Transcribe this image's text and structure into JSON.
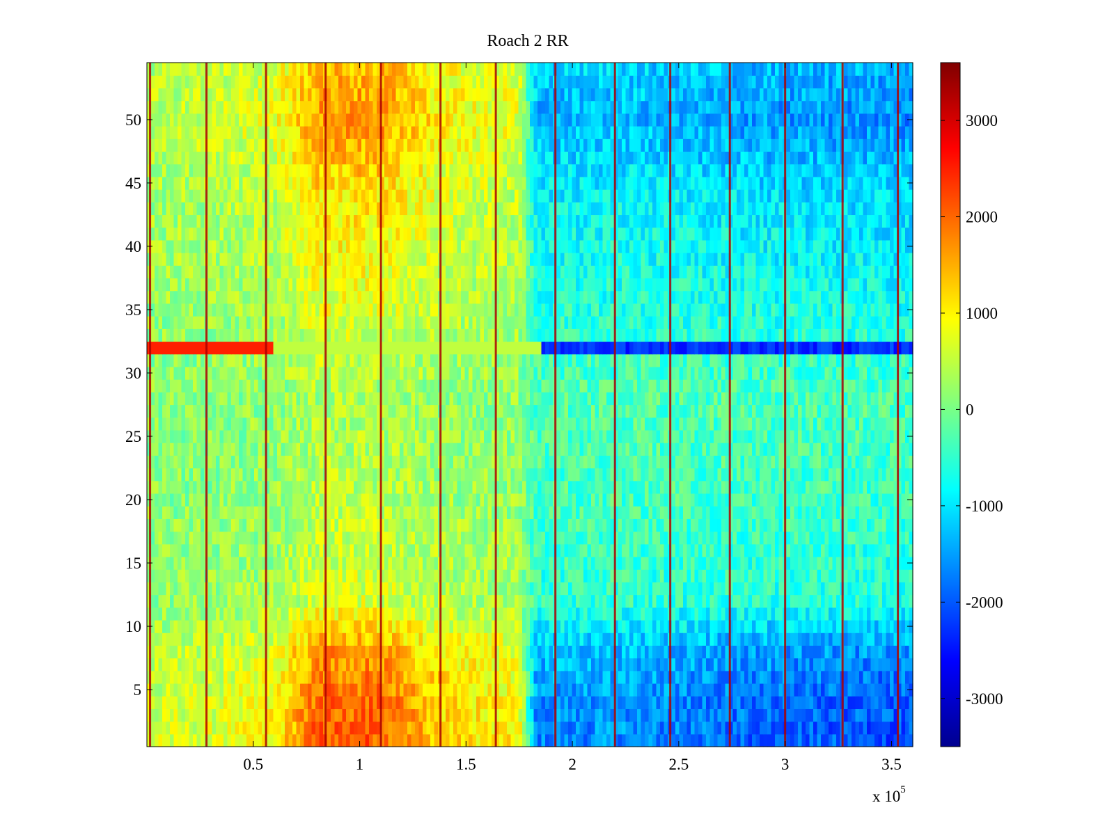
{
  "chart_data": {
    "type": "heatmap",
    "title": "Roach 2 RR",
    "xlabel": "",
    "ylabel": "",
    "x_multiplier_label": "x 10",
    "x_multiplier_exponent": "5",
    "xlim": [
      0,
      360000
    ],
    "ylim": [
      0.5,
      54.5
    ],
    "n_rows": 54,
    "x_ticks": [
      {
        "value": 50000,
        "label": "0.5"
      },
      {
        "value": 100000,
        "label": "1"
      },
      {
        "value": 150000,
        "label": "1.5"
      },
      {
        "value": 200000,
        "label": "2"
      },
      {
        "value": 250000,
        "label": "2.5"
      },
      {
        "value": 300000,
        "label": "3"
      },
      {
        "value": 350000,
        "label": "3.5"
      }
    ],
    "y_ticks": [
      {
        "value": 5,
        "label": "5"
      },
      {
        "value": 10,
        "label": "10"
      },
      {
        "value": 15,
        "label": "15"
      },
      {
        "value": 20,
        "label": "20"
      },
      {
        "value": 25,
        "label": "25"
      },
      {
        "value": 30,
        "label": "30"
      },
      {
        "value": 35,
        "label": "35"
      },
      {
        "value": 40,
        "label": "40"
      },
      {
        "value": 45,
        "label": "45"
      },
      {
        "value": 50,
        "label": "50"
      }
    ],
    "colormap": "jet",
    "clim": [
      -3500,
      3600
    ],
    "colorbar_ticks": [
      {
        "value": 3000,
        "label": "3000"
      },
      {
        "value": 2000,
        "label": "2000"
      },
      {
        "value": 1000,
        "label": "1000"
      },
      {
        "value": 0,
        "label": "0"
      },
      {
        "value": -1000,
        "label": "-1000"
      },
      {
        "value": -2000,
        "label": "-2000"
      },
      {
        "value": -3000,
        "label": "-3000"
      }
    ],
    "column_profile": [
      {
        "x": 0,
        "value": 300
      },
      {
        "x": 30000,
        "value": 350
      },
      {
        "x": 60000,
        "value": 500
      },
      {
        "x": 80000,
        "value": 1100
      },
      {
        "x": 110000,
        "value": 1100
      },
      {
        "x": 140000,
        "value": 650
      },
      {
        "x": 175000,
        "value": 500
      },
      {
        "x": 183000,
        "value": -900
      },
      {
        "x": 220000,
        "value": -850
      },
      {
        "x": 280000,
        "value": -1000
      },
      {
        "x": 330000,
        "value": -1050
      },
      {
        "x": 360000,
        "value": -1100
      }
    ],
    "row_factors": [
      {
        "row": 1,
        "factor": 1.9
      },
      {
        "row": 4,
        "factor": 1.8
      },
      {
        "row": 8,
        "factor": 1.5
      },
      {
        "row": 12,
        "factor": 0.6
      },
      {
        "row": 20,
        "factor": 0.4
      },
      {
        "row": 28,
        "factor": 0.3
      },
      {
        "row": 36,
        "factor": 0.7
      },
      {
        "row": 44,
        "factor": 1.0
      },
      {
        "row": 50,
        "factor": 1.5
      },
      {
        "row": 54,
        "factor": 1.3
      }
    ],
    "highlighted_row": {
      "row": 32,
      "left_value": 2500,
      "right_value": -2300
    },
    "spike_lines_x": [
      1500,
      28000,
      56000,
      84000,
      110000,
      138000,
      164000,
      192000,
      220000,
      246000,
      274000,
      300000,
      327000,
      353000
    ],
    "spike_value": 3300
  }
}
